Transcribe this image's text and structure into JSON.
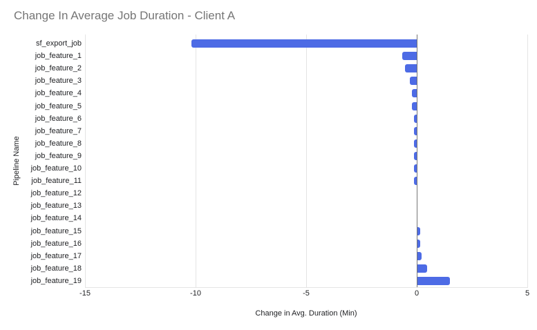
{
  "chart_data": {
    "type": "bar",
    "orientation": "horizontal",
    "title": "Change In Average Job Duration - Client A",
    "xlabel": "Change in Avg. Duration (Min)",
    "ylabel": "Pipeline Name",
    "xlim": [
      -15,
      5
    ],
    "xticks": [
      -15,
      -10,
      -5,
      0,
      5
    ],
    "grid": true,
    "legend_position": "none",
    "bar_color": "#4d6be5",
    "title_color": "#757575",
    "gridline_color": "#e4e4e4",
    "zero_line_color": "#757575",
    "categories": [
      "sf_export_job",
      "job_feature_1",
      "job_feature_2",
      "job_feature_3",
      "job_feature_4",
      "job_feature_5",
      "job_feature_6",
      "job_feature_7",
      "job_feature_8",
      "job_feature_9",
      "job_feature_10",
      "job_feature_11",
      "job_feature_12",
      "job_feature_13",
      "job_feature_14",
      "job_feature_15",
      "job_feature_16",
      "job_feature_17",
      "job_feature_18",
      "job_feature_19"
    ],
    "values": [
      -10.2,
      -0.65,
      -0.53,
      -0.3,
      -0.22,
      -0.22,
      -0.13,
      -0.13,
      -0.13,
      -0.13,
      -0.13,
      -0.13,
      0,
      0,
      0,
      0.15,
      0.15,
      0.22,
      0.47,
      1.5
    ]
  }
}
